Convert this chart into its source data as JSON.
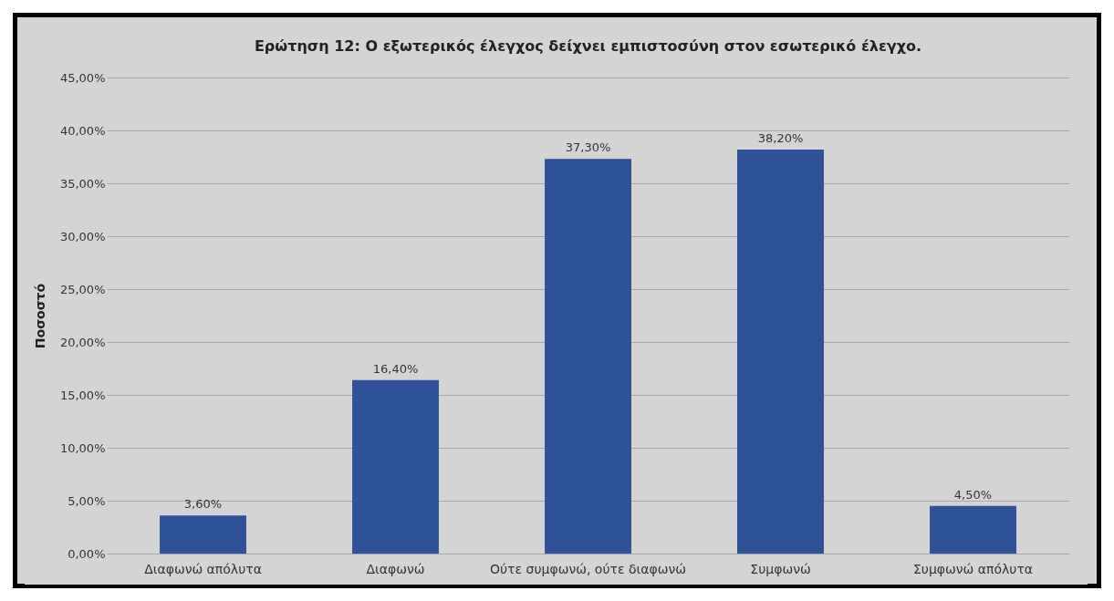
{
  "chart_data": {
    "type": "bar",
    "title": "Ερώτηση 12: Ο εξωτερικός έλεγχος δείχνει εμπιστοσύνη στον εσωτερικό έλεγχο.",
    "ylabel": "Ποσοστό",
    "categories": [
      "Διαφωνώ απόλυτα",
      "Διαφωνώ",
      "Ούτε συμφωνώ, ούτε διαφωνώ",
      "Συμφωνώ",
      "Συμφωνώ απόλυτα"
    ],
    "values": [
      3.6,
      16.4,
      37.3,
      38.2,
      4.5
    ],
    "value_labels": [
      "3,60%",
      "16,40%",
      "37,30%",
      "38,20%",
      "4,50%"
    ],
    "color": "#2f5197",
    "ylim": [
      0,
      45
    ],
    "yticks": [
      {
        "value": 0,
        "label": "0,00%"
      },
      {
        "value": 5,
        "label": "5,00%"
      },
      {
        "value": 10,
        "label": "10,00%"
      },
      {
        "value": 15,
        "label": "15,00%"
      },
      {
        "value": 20,
        "label": "20,00%"
      },
      {
        "value": 25,
        "label": "25,00%"
      },
      {
        "value": 30,
        "label": "30,00%"
      },
      {
        "value": 35,
        "label": "35,00%"
      },
      {
        "value": 40,
        "label": "40,00%"
      },
      {
        "value": 45,
        "label": "45,00%"
      }
    ],
    "grid": "y"
  }
}
